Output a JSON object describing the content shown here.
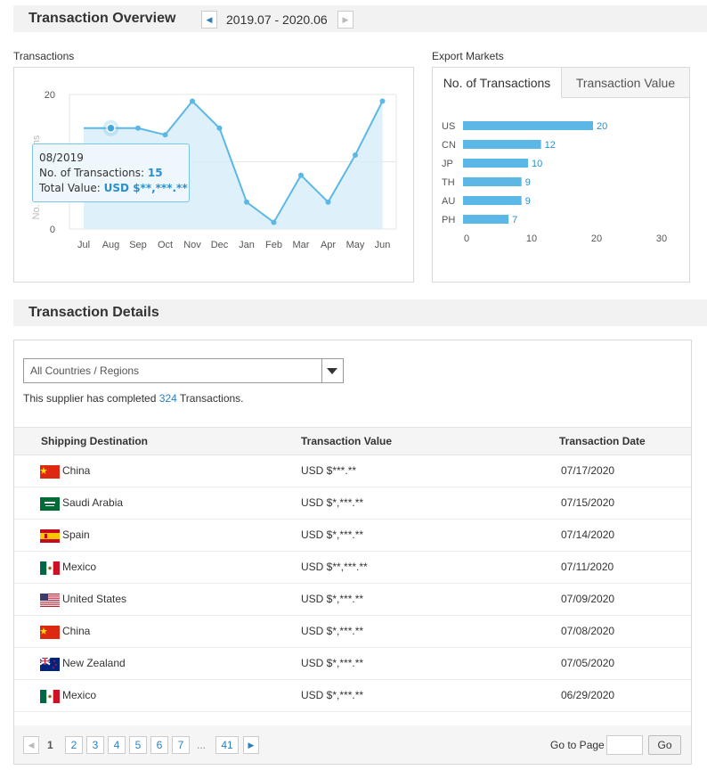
{
  "overview": {
    "title": "Transaction Overview",
    "date_range": "2019.07 - 2020.06",
    "prev_icon": "chevron-left-icon",
    "next_icon": "chevron-right-icon"
  },
  "transactions_chart": {
    "label": "Transactions",
    "ylabel": "No. of Transactions",
    "tooltip": {
      "month": "08/2019",
      "count_label": "No. of Transactions:",
      "count_value": "15",
      "value_label": "Total Value:",
      "value_value": "USD $**,***.**"
    }
  },
  "export_markets": {
    "label": "Export Markets",
    "tabs": [
      "No. of Transactions",
      "Transaction Value"
    ],
    "active_tab": 0
  },
  "chart_data": [
    {
      "type": "area",
      "x": [
        "Jul",
        "Aug",
        "Sep",
        "Oct",
        "Nov",
        "Dec",
        "Jan",
        "Feb",
        "Mar",
        "Apr",
        "May",
        "Jun"
      ],
      "values": [
        15,
        15,
        15,
        14,
        19,
        15,
        4,
        1,
        8,
        4,
        11,
        19
      ],
      "ylabel": "No. of Transactions",
      "ylim": [
        0,
        20
      ],
      "yticks": [
        "20",
        "0"
      ],
      "grid": true,
      "highlighted_index": 1,
      "color": "#5bb8e6"
    },
    {
      "type": "bar",
      "orientation": "horizontal",
      "categories": [
        "US",
        "CN",
        "JP",
        "TH",
        "AU",
        "PH"
      ],
      "values": [
        20,
        12,
        10,
        9,
        9,
        7
      ],
      "xlim": [
        0,
        30
      ],
      "xticks": [
        "0",
        "10",
        "20",
        "30"
      ],
      "color": "#5bb8e6"
    }
  ],
  "details": {
    "title": "Transaction Details",
    "filter_value": "All Countries / Regions",
    "summary_prefix": "This supplier has completed",
    "summary_count": "324",
    "summary_suffix": "Transactions.",
    "columns": [
      "Shipping Destination",
      "Transaction Value",
      "Transaction Date"
    ],
    "rows": [
      {
        "flag": "china-flag-icon",
        "country": "China",
        "value": "USD $***.**",
        "date": "07/17/2020"
      },
      {
        "flag": "saudi-arabia-flag-icon",
        "country": "Saudi Arabia",
        "value": "USD $*,***.**",
        "date": "07/15/2020"
      },
      {
        "flag": "spain-flag-icon",
        "country": "Spain",
        "value": "USD $*,***.**",
        "date": "07/14/2020"
      },
      {
        "flag": "mexico-flag-icon",
        "country": "Mexico",
        "value": "USD $**,***.**",
        "date": "07/11/2020"
      },
      {
        "flag": "united-states-flag-icon",
        "country": "United States",
        "value": "USD $*,***.**",
        "date": "07/09/2020"
      },
      {
        "flag": "china-flag-icon",
        "country": "China",
        "value": "USD $*,***.**",
        "date": "07/08/2020"
      },
      {
        "flag": "new-zealand-flag-icon",
        "country": "New Zealand",
        "value": "USD $*,***.**",
        "date": "07/05/2020"
      },
      {
        "flag": "mexico-flag-icon",
        "country": "Mexico",
        "value": "USD $*,***.**",
        "date": "06/29/2020"
      }
    ]
  },
  "pagination": {
    "pages": [
      "1",
      "2",
      "3",
      "4",
      "5",
      "6",
      "7"
    ],
    "current": "1",
    "ellipsis": "...",
    "last": "41",
    "goto_label": "Go to Page",
    "go_label": "Go"
  }
}
